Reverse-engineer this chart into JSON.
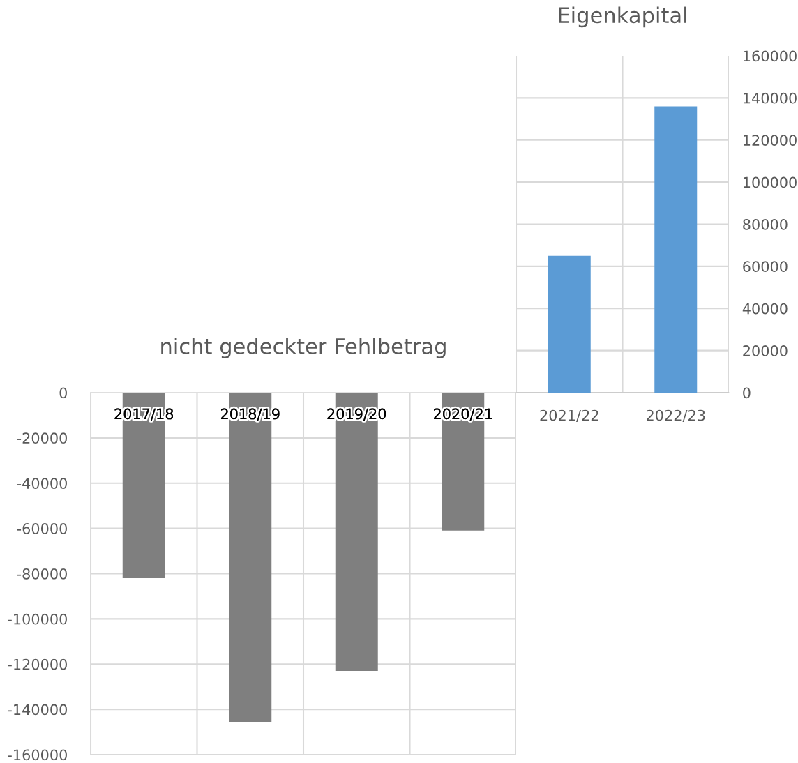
{
  "chart_data": [
    {
      "type": "bar",
      "title": "nicht gedeckter Fehlbetrag",
      "categories": [
        "2017/18",
        "2018/19",
        "2019/20",
        "2020/21"
      ],
      "series": [
        {
          "color": "#7f7f7f",
          "values": [
            -82000,
            -145500,
            -123000,
            -61000
          ]
        }
      ],
      "ylim": [
        -160000,
        0
      ],
      "yticks": [
        -160000,
        -140000,
        -120000,
        -100000,
        -80000,
        -60000,
        -40000,
        -20000,
        0
      ],
      "grid": true
    },
    {
      "type": "bar",
      "title": "Eigenkapital",
      "categories": [
        "2021/22",
        "2022/23"
      ],
      "series": [
        {
          "color": "#5b9bd5",
          "values": [
            65000,
            136000
          ]
        }
      ],
      "ylim": [
        0,
        160000
      ],
      "yticks": [
        0,
        20000,
        40000,
        60000,
        80000,
        100000,
        120000,
        140000,
        160000
      ],
      "grid": true
    }
  ]
}
